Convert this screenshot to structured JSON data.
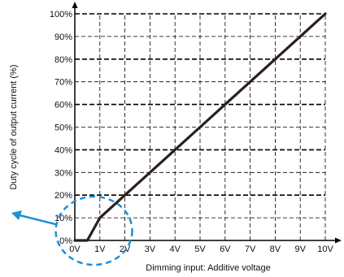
{
  "chart_data": {
    "type": "line",
    "title": "",
    "xlabel": "Dimming input: Additive voltage",
    "ylabel": "Duty cycle of output current (%)",
    "x_tick_labels": [
      "0V",
      "1V",
      "2V",
      "3V",
      "4V",
      "5V",
      "6V",
      "7V",
      "8V",
      "9V",
      "10V"
    ],
    "y_tick_labels": [
      "0%",
      "10%",
      "20%",
      "30%",
      "40%",
      "50%",
      "60%",
      "70%",
      "80%",
      "90%",
      "100%"
    ],
    "xlim": [
      0,
      10
    ],
    "ylim": [
      0,
      100
    ],
    "grid": true,
    "series": [
      {
        "x": [
          0.0,
          0.5,
          1.0,
          2.0,
          3.0,
          4.0,
          5.0,
          6.0,
          7.0,
          8.0,
          9.0,
          10.0
        ],
        "y": [
          0,
          0,
          10,
          20,
          30,
          40,
          50,
          60,
          70,
          80,
          90,
          100
        ]
      }
    ],
    "line_color": "#2a1e1e",
    "grid_color": "#000000",
    "annotation": {
      "type": "dashed-circle-with-arrow",
      "target_x": 0.7,
      "target_y": 5,
      "color": "#1f8fd6"
    }
  }
}
